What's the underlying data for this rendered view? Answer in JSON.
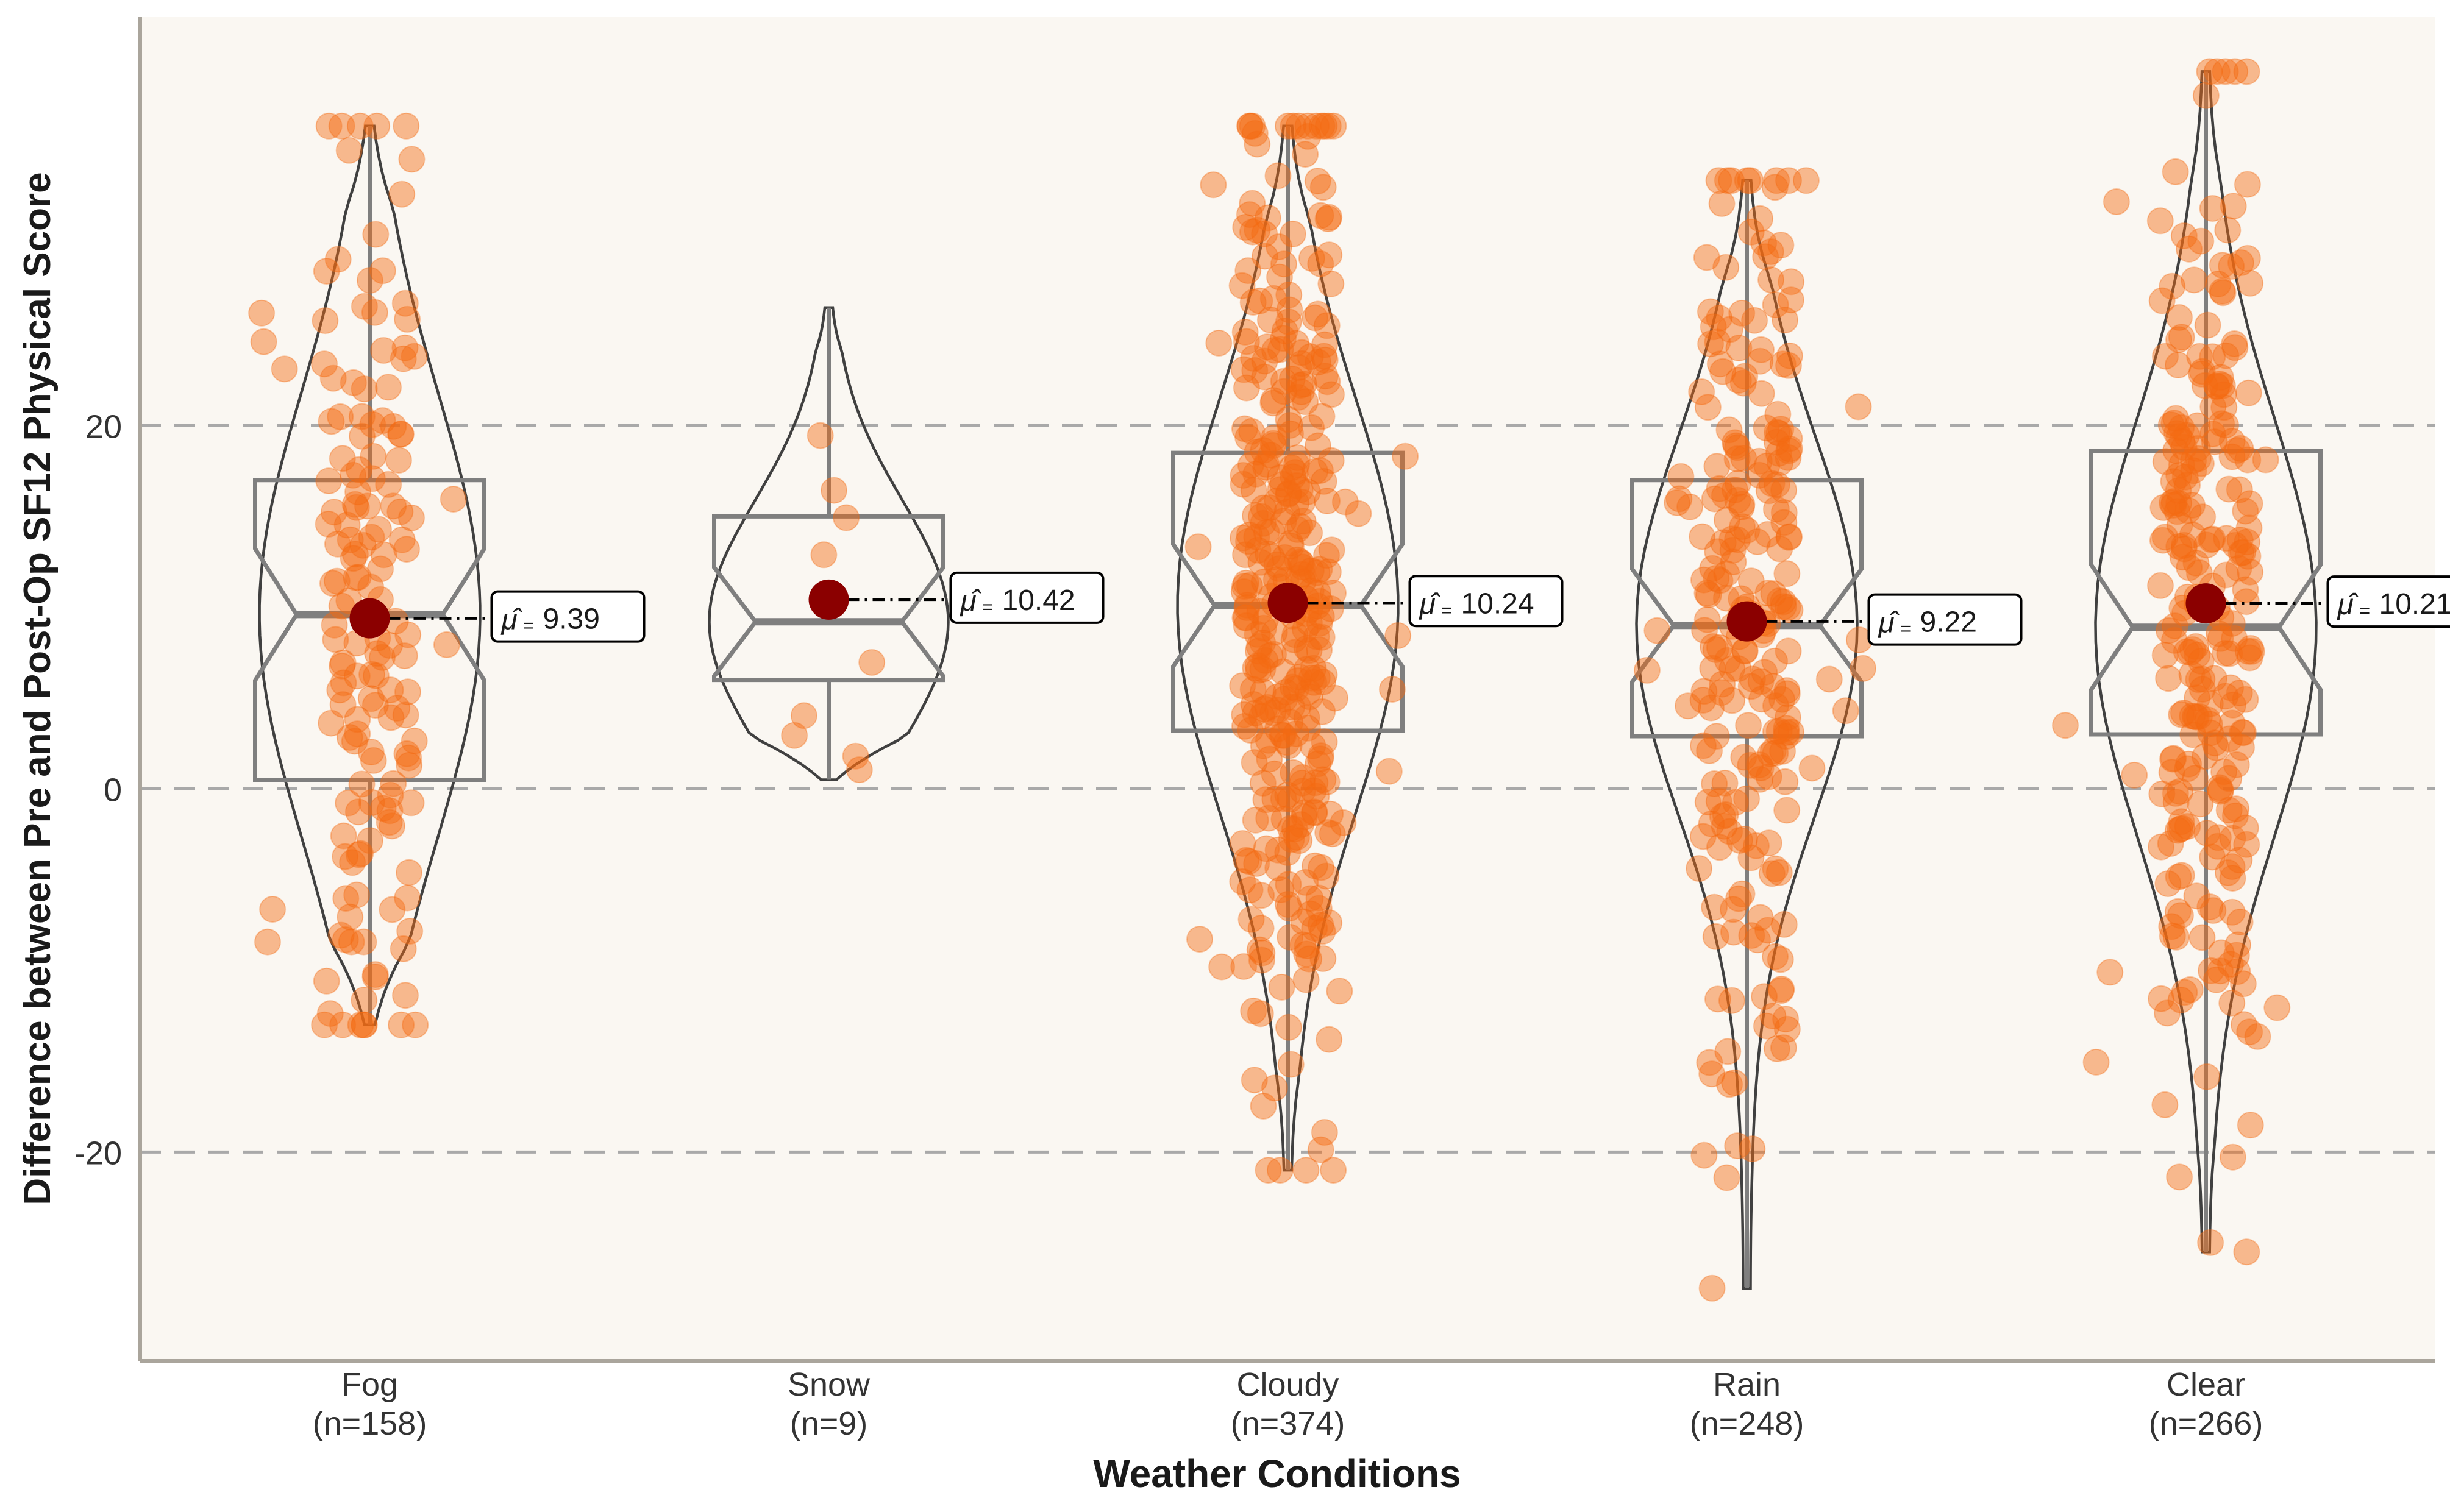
{
  "chart_data": {
    "type": "violin-box-scatter",
    "xlabel": "Weather Conditions",
    "ylabel": "Difference between Pre and Post-Op SF12 Physical Score",
    "ylim": [
      -31.5,
      42.5
    ],
    "yticks": [
      -20,
      0,
      20
    ],
    "ytick_labels": [
      "-20",
      "0",
      "20"
    ],
    "grid": "horizontal dashed",
    "colors": {
      "panel": "#faf7f2",
      "point": "#f36b12",
      "mean": "#8b0000",
      "grid": "#a9a9a9",
      "box": "#7f7f7f",
      "violin": "#404040"
    },
    "groups": [
      {
        "name": "Fog",
        "n_label": "(n=158)",
        "mean": 9.39,
        "mean_label": "9.39",
        "min": -13,
        "q1": 0.5,
        "median": 9.6,
        "q3": 17.0,
        "max": 36.5,
        "whisker_low": -13,
        "whisker_high": 36.5
      },
      {
        "name": "Snow",
        "n_label": "(n=9)",
        "mean": 10.42,
        "mean_label": "10.42",
        "min": 0.5,
        "q1": 6.0,
        "median": 9.2,
        "q3": 15.0,
        "max": 26.5,
        "whisker_low": 0.5,
        "whisker_high": 26.5
      },
      {
        "name": "Cloudy",
        "n_label": "(n=374)",
        "mean": 10.24,
        "mean_label": "10.24",
        "min": -21,
        "q1": 3.2,
        "median": 10.1,
        "q3": 18.5,
        "max": 36.5,
        "whisker_low": -21,
        "whisker_high": 36.5
      },
      {
        "name": "Rain",
        "n_label": "(n=248)",
        "mean": 9.22,
        "mean_label": "9.22",
        "min": -27.5,
        "q1": 2.9,
        "median": 9.0,
        "q3": 17.0,
        "max": 33.5,
        "whisker_low": -27.5,
        "whisker_high": 33.5
      },
      {
        "name": "Clear",
        "n_label": "(n=266)",
        "mean": 10.21,
        "mean_label": "10.21",
        "min": -25.5,
        "q1": 3.0,
        "median": 8.9,
        "q3": 18.6,
        "max": 39.5,
        "whisker_low": -25.5,
        "whisker_high": 39.5
      }
    ]
  }
}
